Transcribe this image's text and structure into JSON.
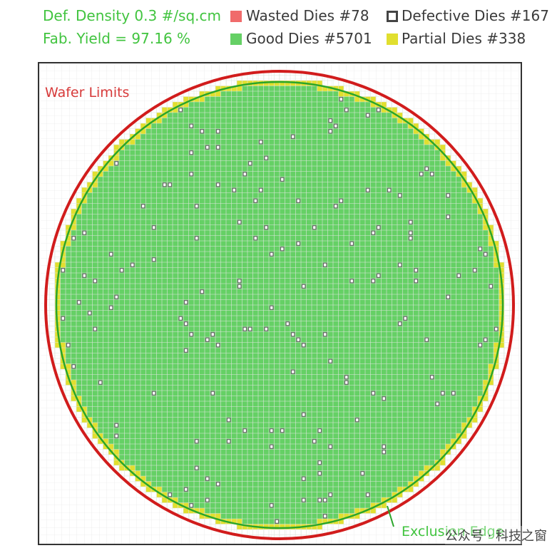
{
  "stats": {
    "density_label": "Def. Density 0.3 #/sq.cm",
    "yield_label": "Fab. Yield = 97.16 %"
  },
  "legend": {
    "wasted": {
      "label": "Wasted Dies  #78",
      "color": "#f06b6b"
    },
    "defective": {
      "label": "Defective Dies  #167",
      "color": "#555555"
    },
    "good": {
      "label": "Good Dies #5701",
      "color": "#65d065"
    },
    "partial": {
      "label": "Partial Dies #338",
      "color": "#e1df2f"
    }
  },
  "wafer_map": {
    "wafer_limits_label": "Wafer Limits",
    "exclusion_edge_label": "Exclusion Edge",
    "colors": {
      "wafer_edge": "#d11c1c",
      "exclusion_edge": "#2aa52a",
      "good_die": "#65d065",
      "partial_die": "#e1df2f",
      "wasted_die": "#f06b6b",
      "defect_marker": "#666666",
      "grid_line": "#dde6dd"
    }
  },
  "watermark": {
    "text": "公众号 · 科技之窗"
  }
}
